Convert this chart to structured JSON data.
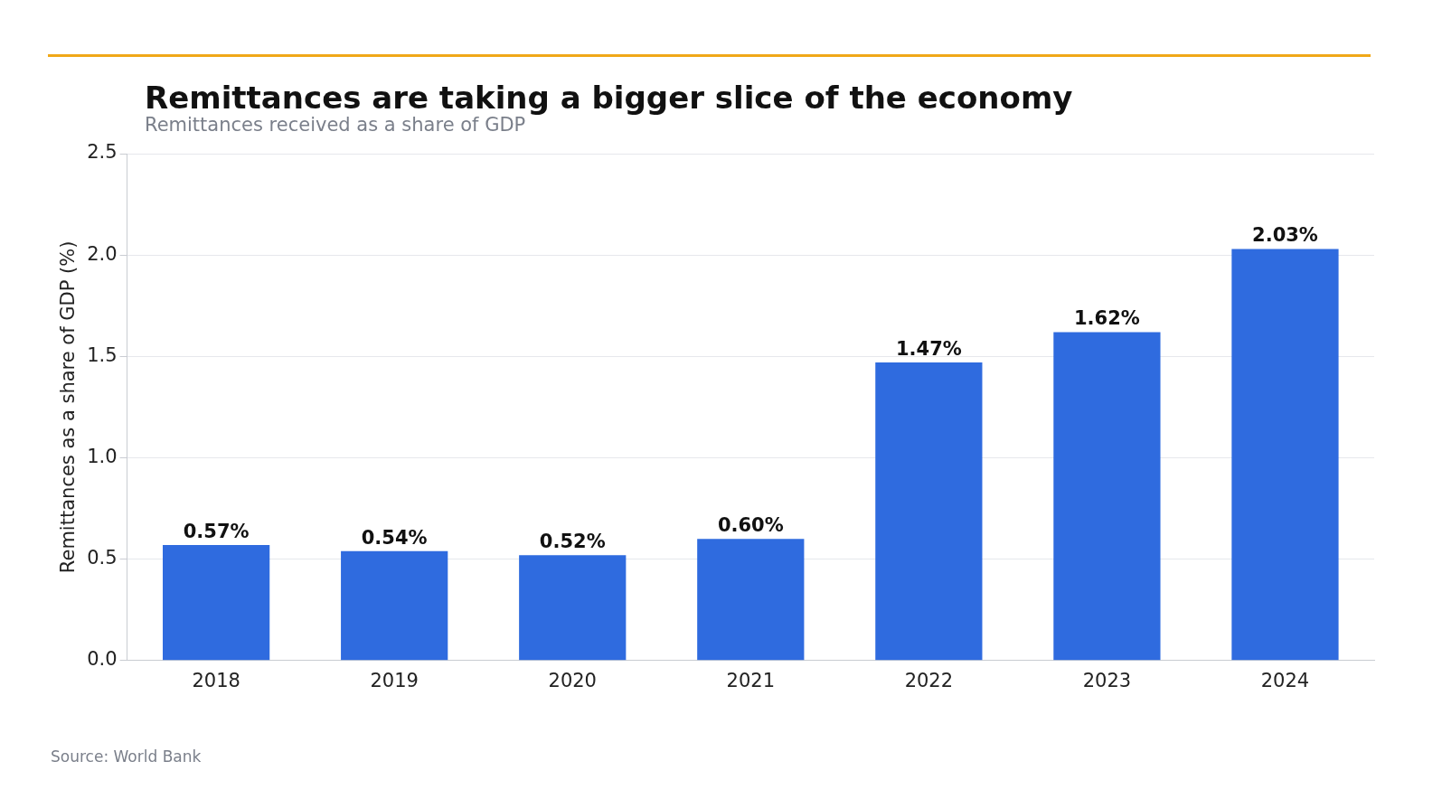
{
  "chart_data": {
    "type": "bar",
    "title": "Remittances are taking a bigger slice of the economy",
    "subtitle": "Remittances received as a share of GDP",
    "ylabel": "Remittances as a share of GDP (%)",
    "categories": [
      "2018",
      "2019",
      "2020",
      "2021",
      "2022",
      "2023",
      "2024"
    ],
    "values": [
      0.57,
      0.54,
      0.52,
      0.6,
      1.47,
      1.62,
      2.03
    ],
    "value_labels": [
      "0.57%",
      "0.54%",
      "0.52%",
      "0.60%",
      "1.47%",
      "1.62%",
      "2.03%"
    ],
    "color": "#2f6bdf",
    "ylim": [
      0,
      2.5
    ],
    "yticks": [
      {
        "value": 0,
        "label": "0.0"
      },
      0.5,
      {
        "value": 1,
        "label": "1.0"
      },
      1.5,
      {
        "value": 2,
        "label": "2.0"
      },
      2.5
    ],
    "grid": "y",
    "annotations": [
      "Source: World Bank"
    ]
  }
}
